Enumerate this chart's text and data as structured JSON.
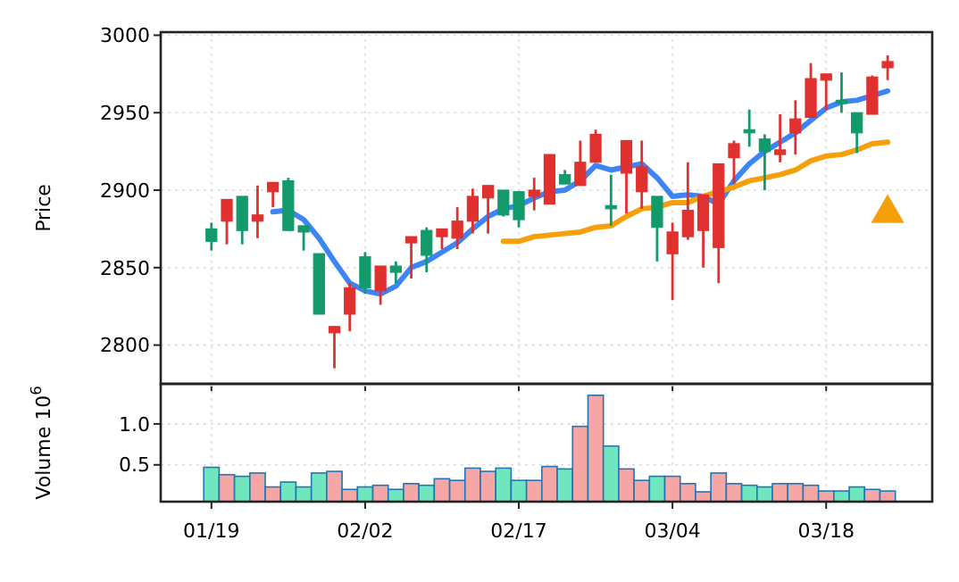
{
  "chart_data": [
    {
      "type": "candlestick",
      "ylabel": "Price",
      "categories": [
        null,
        null,
        null,
        null,
        null,
        null,
        null,
        null,
        null,
        null,
        null,
        null,
        null,
        null,
        null,
        null,
        null,
        null,
        null,
        null,
        null,
        null,
        null,
        null,
        null,
        null,
        null,
        null,
        null,
        null,
        null,
        null,
        null,
        null,
        null,
        null,
        null,
        null,
        null,
        null,
        null,
        null,
        null,
        null,
        null
      ],
      "ohlc": [
        [
          2867,
          2879,
          2861,
          2875
        ],
        [
          2894,
          2894,
          2865,
          2880
        ],
        [
          2874,
          2896,
          2865,
          2896
        ],
        [
          2884,
          2903,
          2869,
          2880
        ],
        [
          2905,
          2905,
          2889,
          2899
        ],
        [
          2874,
          2908,
          2874,
          2906
        ],
        [
          2873,
          2877,
          2861,
          2877
        ],
        [
          2820,
          2859,
          2820,
          2859
        ],
        [
          2812,
          2812,
          2785,
          2808
        ],
        [
          2837,
          2840,
          2809,
          2820
        ],
        [
          2837,
          2860,
          2833,
          2857
        ],
        [
          2851,
          2851,
          2826,
          2835
        ],
        [
          2847,
          2854,
          2840,
          2851
        ],
        [
          2870,
          2870,
          2843,
          2866
        ],
        [
          2858,
          2876,
          2847,
          2874
        ],
        [
          2875,
          2875,
          2862,
          2870
        ],
        [
          2880,
          2889,
          2862,
          2869
        ],
        [
          2896,
          2901,
          2872,
          2880
        ],
        [
          2903,
          2903,
          2872,
          2895
        ],
        [
          2884,
          2900,
          2883,
          2900
        ],
        [
          2881,
          2899,
          2876,
          2899
        ],
        [
          2900,
          2908,
          2887,
          2896
        ],
        [
          2923,
          2923,
          2891,
          2891
        ],
        [
          2904,
          2913,
          2904,
          2910
        ],
        [
          2918,
          2932,
          2903,
          2903
        ],
        [
          2936,
          2939,
          2918,
          2918
        ],
        [
          2888,
          2910,
          2877,
          2890
        ],
        [
          2932,
          2932,
          2885,
          2911
        ],
        [
          2915,
          2932,
          2888,
          2899
        ],
        [
          2876,
          2896,
          2854,
          2896
        ],
        [
          2873,
          2879,
          2829,
          2859
        ],
        [
          2887,
          2918,
          2868,
          2870
        ],
        [
          2897,
          2897,
          2850,
          2874
        ],
        [
          2917,
          2917,
          2840,
          2863
        ],
        [
          2930,
          2932,
          2904,
          2921
        ],
        [
          2937,
          2952,
          2928,
          2939
        ],
        [
          2925,
          2936,
          2900,
          2933
        ],
        [
          2926,
          2949,
          2918,
          2923
        ],
        [
          2946,
          2958,
          2923,
          2937
        ],
        [
          2972,
          2982,
          2947,
          2947
        ],
        [
          2975,
          2975,
          2952,
          2971
        ],
        [
          2956,
          2976,
          2950,
          2958
        ],
        [
          2937,
          2950,
          2924,
          2950
        ],
        [
          2973,
          2974,
          2949,
          2949
        ],
        [
          2983,
          2987,
          2971,
          2979
        ]
      ],
      "colors": [
        "#139a6b",
        "#e0312f",
        "#139a6b",
        "#e0312f",
        "#e0312f",
        "#139a6b",
        "#139a6b",
        "#139a6b",
        "#e0312f",
        "#e0312f",
        "#139a6b",
        "#e0312f",
        "#139a6b",
        "#e0312f",
        "#139a6b",
        "#e0312f",
        "#e0312f",
        "#e0312f",
        "#e0312f",
        "#139a6b",
        "#139a6b",
        "#e0312f",
        "#e0312f",
        "#139a6b",
        "#e0312f",
        "#e0312f",
        "#139a6b",
        "#e0312f",
        "#e0312f",
        "#139a6b",
        "#e0312f",
        "#e0312f",
        "#e0312f",
        "#e0312f",
        "#e0312f",
        "#139a6b",
        "#139a6b",
        "#e0312f",
        "#e0312f",
        "#e0312f",
        "#e0312f",
        "#139a6b",
        "#139a6b",
        "#e0312f",
        "#e0312f"
      ],
      "series": [
        {
          "type": "line",
          "color": "#3d85f4",
          "values": [
            null,
            null,
            null,
            null,
            2886,
            2887,
            2881,
            2869,
            2854,
            2840,
            2835,
            2833,
            2838,
            2850,
            2854,
            2860,
            2866,
            2875,
            2883,
            2888,
            2890,
            2895,
            2899,
            2900,
            2906,
            2916,
            2913,
            2915,
            2917,
            2908,
            2896,
            2897,
            2896,
            2891,
            2906,
            2917,
            2925,
            2931,
            2937,
            2945,
            2953,
            2957,
            2958,
            2961,
            2964
          ]
        },
        {
          "type": "line",
          "color": "#f5a00a",
          "values": [
            null,
            null,
            null,
            null,
            null,
            null,
            null,
            null,
            null,
            null,
            null,
            null,
            null,
            null,
            null,
            null,
            null,
            null,
            null,
            2867,
            2867,
            2870,
            2871,
            2872,
            2873,
            2876,
            2877,
            2883,
            2888,
            2889,
            2892,
            2892,
            2896,
            2899,
            2902,
            2906,
            2908,
            2910,
            2913,
            2919,
            2922,
            2923,
            2926,
            2930,
            2931
          ]
        },
        {
          "type": "scatter",
          "color": "#f5a00a",
          "marker": "triangle",
          "values": [
            null,
            null,
            null,
            null,
            null,
            null,
            null,
            null,
            null,
            null,
            null,
            null,
            null,
            null,
            null,
            null,
            null,
            null,
            null,
            null,
            null,
            null,
            null,
            null,
            null,
            null,
            null,
            null,
            null,
            null,
            null,
            null,
            null,
            null,
            null,
            null,
            null,
            null,
            null,
            null,
            null,
            null,
            null,
            null,
            2885
          ]
        }
      ],
      "ylim": [
        2775,
        3002
      ],
      "yticks": [
        2800,
        2850,
        2900,
        2950,
        3000
      ],
      "grid": true,
      "tick_labels": "y"
    },
    {
      "type": "bar",
      "ylabel": "Volume  10$^{6}$",
      "categories": [
        "01/19",
        null,
        null,
        null,
        null,
        null,
        null,
        null,
        null,
        null,
        "02/02",
        null,
        null,
        null,
        null,
        null,
        null,
        null,
        null,
        null,
        "02/17",
        null,
        null,
        null,
        null,
        null,
        null,
        null,
        null,
        null,
        "03/04",
        null,
        null,
        null,
        null,
        null,
        null,
        null,
        null,
        null,
        "03/18",
        null,
        null,
        null,
        null
      ],
      "values": [
        0.47,
        0.38,
        0.36,
        0.4,
        0.23,
        0.29,
        0.23,
        0.4,
        0.42,
        0.2,
        0.23,
        0.25,
        0.2,
        0.27,
        0.25,
        0.33,
        0.31,
        0.46,
        0.42,
        0.46,
        0.31,
        0.31,
        0.48,
        0.45,
        0.97,
        1.35,
        0.73,
        0.45,
        0.31,
        0.36,
        0.36,
        0.27,
        0.17,
        0.4,
        0.27,
        0.25,
        0.23,
        0.27,
        0.27,
        0.25,
        0.18,
        0.18,
        0.23,
        0.2,
        0.18
      ],
      "colors": [
        "#6fe6bd",
        "#f7a6a6",
        "#6fe6bd",
        "#f7a6a6",
        "#f7a6a6",
        "#6fe6bd",
        "#6fe6bd",
        "#6fe6bd",
        "#f7a6a6",
        "#f7a6a6",
        "#6fe6bd",
        "#f7a6a6",
        "#6fe6bd",
        "#f7a6a6",
        "#6fe6bd",
        "#f7a6a6",
        "#f7a6a6",
        "#f7a6a6",
        "#f7a6a6",
        "#6fe6bd",
        "#6fe6bd",
        "#f7a6a6",
        "#f7a6a6",
        "#6fe6bd",
        "#f7a6a6",
        "#f7a6a6",
        "#6fe6bd",
        "#f7a6a6",
        "#f7a6a6",
        "#6fe6bd",
        "#f7a6a6",
        "#f7a6a6",
        "#f7a6a6",
        "#f7a6a6",
        "#f7a6a6",
        "#6fe6bd",
        "#6fe6bd",
        "#f7a6a6",
        "#f7a6a6",
        "#f7a6a6",
        "#f7a6a6",
        "#6fe6bd",
        "#6fe6bd",
        "#f7a6a6",
        "#f7a6a6"
      ],
      "ylim": [
        0.05,
        1.49
      ],
      "yticks": [
        {
          "value": 0.5,
          "label": "0.5"
        },
        {
          "value": 1,
          "label": "1.0"
        }
      ],
      "grid": true
    }
  ]
}
